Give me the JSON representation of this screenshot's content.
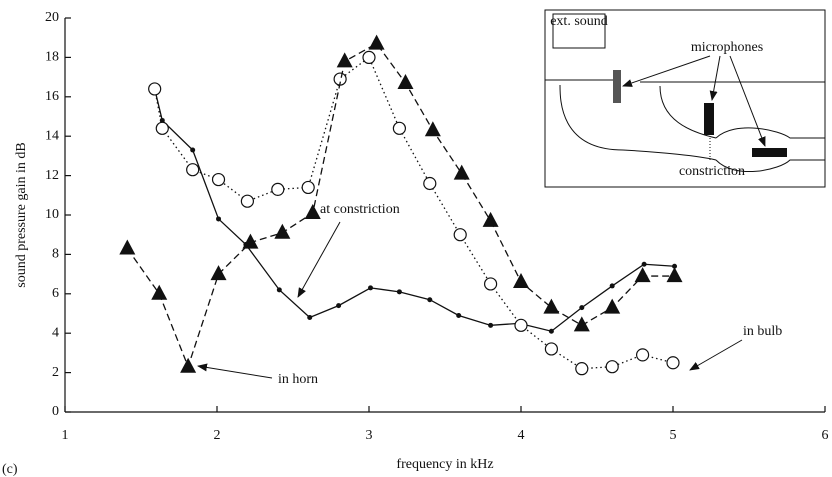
{
  "chart_data": {
    "type": "line",
    "xlabel": "frequency in kHz",
    "ylabel": "sound pressure gain in dB",
    "panel_label": "(c)",
    "xlim": [
      1,
      6
    ],
    "xticks": [
      1,
      2,
      3,
      4,
      5,
      6
    ],
    "ylim": [
      0,
      20
    ],
    "yticks": [
      0,
      2,
      4,
      6,
      8,
      10,
      12,
      14,
      16,
      18,
      20
    ],
    "series": [
      {
        "color": "#111111",
        "style": "solid",
        "marker": "dot",
        "x": [
          1.59,
          1.64,
          1.84,
          2.01,
          2.19,
          2.41,
          2.61,
          2.8,
          3.01,
          3.2,
          3.4,
          3.59,
          3.8,
          3.99,
          4.2,
          4.4,
          4.6,
          4.81,
          5.01
        ],
        "values": [
          16.4,
          14.8,
          13.3,
          9.8,
          8.5,
          6.2,
          4.8,
          5.4,
          6.3,
          6.1,
          5.7,
          4.9,
          4.4,
          4.5,
          4.1,
          5.3,
          6.4,
          7.5,
          7.4
        ]
      },
      {
        "color": "#111111",
        "style": "dotted",
        "marker": "circle",
        "x": [
          1.59,
          1.64,
          1.84,
          2.01,
          2.2,
          2.4,
          2.6,
          2.81,
          3.0,
          3.2,
          3.4,
          3.6,
          3.8,
          4.0,
          4.2,
          4.4,
          4.6,
          4.8,
          5.0
        ],
        "values": [
          16.4,
          14.4,
          12.3,
          11.8,
          10.7,
          11.3,
          11.4,
          16.9,
          18.0,
          14.4,
          11.6,
          9.0,
          6.5,
          4.4,
          3.2,
          2.2,
          2.3,
          2.9,
          2.5
        ]
      },
      {
        "color": "#111111",
        "style": "dashed",
        "marker": "triangle",
        "x": [
          1.41,
          1.62,
          1.81,
          2.01,
          2.22,
          2.43,
          2.63,
          2.84,
          3.05,
          3.24,
          3.42,
          3.61,
          3.8,
          4.0,
          4.2,
          4.4,
          4.6,
          4.8,
          5.01
        ],
        "values": [
          8.3,
          6.0,
          2.3,
          7.0,
          8.6,
          9.1,
          10.1,
          17.8,
          18.7,
          16.7,
          14.3,
          12.1,
          9.7,
          6.6,
          5.3,
          4.4,
          5.3,
          6.9,
          6.9
        ]
      }
    ],
    "annotations": [
      "at constriction",
      "in horn",
      "in bulb"
    ],
    "inset": {
      "labels": [
        "ext. sound",
        "microphones",
        "constriction"
      ]
    }
  }
}
